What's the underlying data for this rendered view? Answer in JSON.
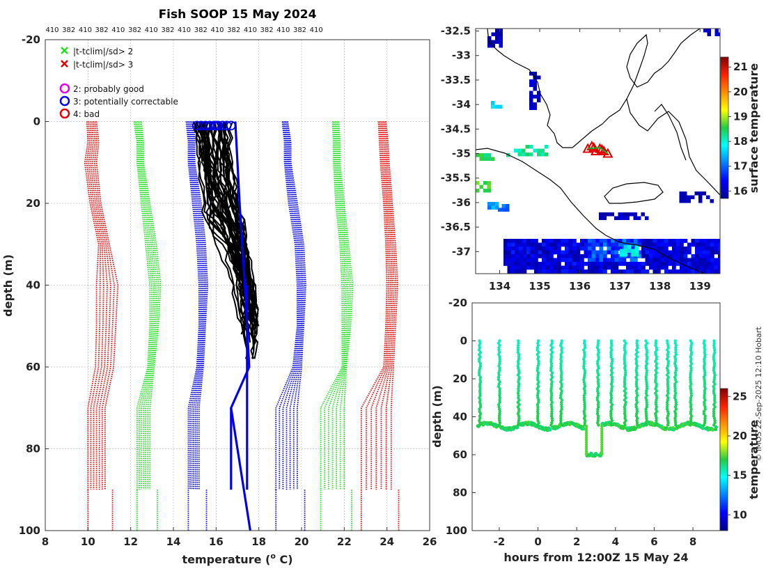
{
  "chart_data": [
    {
      "type": "line",
      "panel": "profiles",
      "title": "Fish SOOP 15 May 2024",
      "top_labels": [
        "410",
        "382",
        "410",
        "382",
        "410",
        "382",
        "410",
        "382",
        "410",
        "382",
        "410",
        "382",
        "410",
        "382",
        "410",
        "382",
        "410"
      ],
      "xlabel": "temperature (° C)",
      "xlabel_main": "temperature (",
      "xlabel_sup": "o",
      "xlabel_tail": " C)",
      "ylabel": "depth (m)",
      "xlim": [
        8,
        26
      ],
      "ylim": [
        -20,
        100
      ],
      "xticks": [
        "8",
        "10",
        "12",
        "14",
        "16",
        "18",
        "20",
        "22",
        "24",
        "26"
      ],
      "yticks": [
        "-20",
        "0",
        "20",
        "40",
        "60",
        "80",
        "100"
      ],
      "legend": {
        "green_x": "|t-tclim|/sd> 2",
        "red_x": "|t-tclim|/sd> 3",
        "magenta_o": "2: probably good",
        "blue_o": "3: potentially correctable",
        "red_o": "4: bad"
      },
      "climatology_depths": [
        0,
        5,
        10,
        20,
        30,
        40,
        50,
        60,
        70,
        80,
        90
      ],
      "series": [
        {
          "name": "clim-3sd-low",
          "color": "#e00000",
          "lower": [
            9.95,
            10.0,
            9.85,
            10.1,
            10.5,
            10.4,
            10.4,
            10.35,
            10.0,
            10.0,
            10.0
          ],
          "upper": [
            10.4,
            10.5,
            10.4,
            10.6,
            11.0,
            11.4,
            11.3,
            11.2,
            10.8,
            10.8,
            10.8
          ],
          "bottom": 90
        },
        {
          "name": "clim-2sd-low",
          "color": "#22dd22",
          "lower": [
            12.15,
            12.3,
            12.3,
            12.5,
            12.7,
            12.9,
            12.9,
            12.8,
            12.3,
            12.3,
            12.3
          ],
          "upper": [
            12.5,
            12.6,
            12.6,
            12.9,
            13.2,
            13.4,
            13.3,
            13.1,
            12.9,
            12.9,
            12.9
          ],
          "bottom": 90
        },
        {
          "name": "clim-mean-low",
          "color": "#0000dd",
          "lower": [
            14.6,
            14.7,
            14.7,
            14.9,
            15.1,
            15.2,
            15.2,
            15.1,
            14.7,
            14.7,
            14.7
          ],
          "upper": [
            14.95,
            15.0,
            15.0,
            15.3,
            15.5,
            15.6,
            15.5,
            15.4,
            15.2,
            15.2,
            15.2
          ],
          "bottom": 90
        },
        {
          "name": "clim-mean-high",
          "color": "#0000dd",
          "lower": [
            19.1,
            19.2,
            19.2,
            19.4,
            19.7,
            19.8,
            19.8,
            19.6,
            18.8,
            18.8,
            18.8
          ],
          "upper": [
            19.35,
            19.5,
            19.5,
            19.8,
            20.1,
            20.2,
            20.1,
            20.0,
            19.8,
            19.8,
            19.8
          ],
          "bottom": 90
        },
        {
          "name": "clim-2sd-high",
          "color": "#22dd22",
          "lower": [
            21.45,
            21.5,
            21.5,
            21.6,
            21.8,
            21.9,
            21.9,
            21.9,
            20.9,
            20.9,
            20.9
          ],
          "upper": [
            21.75,
            21.8,
            21.8,
            22.0,
            22.2,
            22.4,
            22.3,
            22.1,
            22.0,
            22.0,
            22.0
          ],
          "bottom": 90
        },
        {
          "name": "clim-3sd-high",
          "color": "#e00000",
          "lower": [
            23.6,
            23.65,
            23.7,
            23.85,
            23.95,
            24.0,
            23.95,
            23.85,
            22.8,
            22.8,
            22.8
          ],
          "upper": [
            23.95,
            24.05,
            24.1,
            24.25,
            24.4,
            24.5,
            24.4,
            24.3,
            24.2,
            24.2,
            24.2
          ],
          "bottom": 90
        }
      ],
      "mean_profile": {
        "depth": [
          0,
          20,
          40,
          60,
          70,
          100
        ],
        "temp": [
          16.9,
          17.1,
          17.35,
          17.55,
          16.7,
          17.6
        ],
        "color": "#0000ee"
      },
      "observed_profiles": {
        "count": 40,
        "surface_temp_range": [
          15.0,
          16.8
        ],
        "bottom_temp_range": [
          17.3,
          18.1
        ],
        "bottom_depth_range": [
          44,
          60
        ],
        "color": "#000000",
        "flag_circles_temps": [
          15.1,
          15.3,
          15.5,
          15.7,
          15.9,
          16.0,
          16.1,
          16.3,
          16.5,
          16.7
        ]
      }
    },
    {
      "type": "heatmap",
      "panel": "map",
      "colorbar_label": "surface temperature",
      "colorbar_ticks": [
        "16",
        "17",
        "18",
        "19",
        "20",
        "21"
      ],
      "colorbar_range": [
        15.7,
        21.4
      ],
      "xticks": [
        "134",
        "135",
        "136",
        "137",
        "138",
        "139"
      ],
      "yticks": [
        "-32.5",
        "-33",
        "-33.5",
        "-34",
        "-34.5",
        "-35",
        "-35.5",
        "-36",
        "-36.5",
        "-37"
      ],
      "xlim": [
        133.4,
        139.5
      ],
      "ylim": [
        -37.45,
        -32.45
      ],
      "track_positions": {
        "lon": [
          136.2,
          136.3,
          136.4,
          136.5,
          136.6,
          136.7,
          136.35,
          136.55
        ],
        "lat": [
          -34.9,
          -34.85,
          -34.95,
          -34.9,
          -34.95,
          -35.0,
          -34.88,
          -34.92
        ]
      }
    },
    {
      "type": "scatter",
      "panel": "time-depth",
      "xlabel": "hours from 12:00Z 15 May 24",
      "ylabel": "depth (m)",
      "xlim": [
        -3.4,
        9.4
      ],
      "ylim": [
        -20,
        100
      ],
      "xticks": [
        "-2",
        "0",
        "2",
        "4",
        "6",
        "8"
      ],
      "yticks": [
        "-20",
        "0",
        "20",
        "40",
        "60",
        "80",
        "100"
      ],
      "colorbar_label": "temperature",
      "colorbar_ticks": [
        "10",
        "15",
        "20",
        "25"
      ],
      "colorbar_range": [
        8,
        26
      ],
      "surfacing_hours": [
        -3.0,
        -2.0,
        -1.0,
        0.0,
        0.7,
        1.2,
        2.4,
        3.1,
        3.8,
        4.5,
        5.1,
        5.6,
        6.1,
        6.7,
        7.1,
        7.9,
        8.6,
        9.1
      ],
      "bottom_depth": 45,
      "deep_segment": {
        "hours": [
          2.5,
          3.3
        ],
        "depth": 60
      },
      "bottom_temp": 16.5,
      "surface_temp": 15.5
    }
  ],
  "watermark": "© IMOS 22-Sep-2025 12:10 Hobart"
}
